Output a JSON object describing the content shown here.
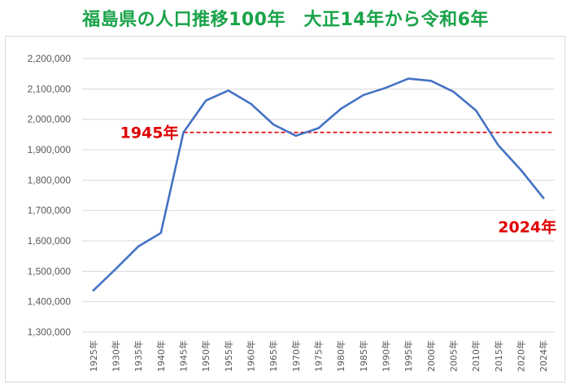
{
  "title": "福島県の人口推移100年　大正14年から令和6年",
  "colors": {
    "title": "#1aa34a",
    "line": "#4472c4",
    "reference": "#e00000",
    "annotation": "#e00000",
    "grid": "#d9d9d9"
  },
  "chart_data": {
    "type": "line",
    "title": "福島県の人口推移100年　大正14年から令和6年",
    "xlabel": "",
    "ylabel": "",
    "grid": true,
    "ylim": [
      1300000,
      2200000
    ],
    "yticks": [
      "1,300,000",
      "1,400,000",
      "1,500,000",
      "1,600,000",
      "1,700,000",
      "1,800,000",
      "1,900,000",
      "2,000,000",
      "2,100,000",
      "2,200,000"
    ],
    "categories": [
      "1925年",
      "1930年",
      "1935年",
      "1940年",
      "1945年",
      "1950年",
      "1955年",
      "1960年",
      "1965年",
      "1970年",
      "1975年",
      "1980年",
      "1985年",
      "1990年",
      "1995年",
      "2000年",
      "2005年",
      "2010年",
      "2015年",
      "2020年",
      "2024年"
    ],
    "series": [
      {
        "values": [
          1437000,
          1508000,
          1582000,
          1626000,
          1957000,
          2062000,
          2095000,
          2051000,
          1983000,
          1946000,
          1971000,
          2035000,
          2080000,
          2104000,
          2134000,
          2127000,
          2091000,
          2029000,
          1914000,
          1833000,
          1741000
        ]
      }
    ],
    "reference_line": {
      "value": 1957000,
      "from": "1945年",
      "to": "2024年"
    },
    "annotations": [
      {
        "text": "1945年",
        "at": "1945年"
      },
      {
        "text": "2024年",
        "at": "2024年"
      }
    ]
  }
}
